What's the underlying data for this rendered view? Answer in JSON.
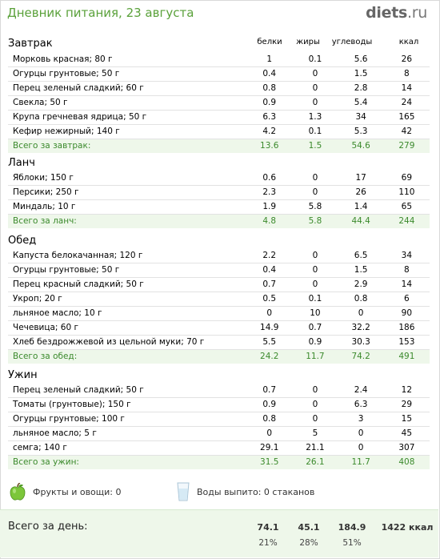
{
  "header": {
    "title": "Дневник питания, 23 августа",
    "logo_main": "diets",
    "logo_tld": ".ru"
  },
  "columns": {
    "protein": "белки",
    "fat": "жиры",
    "carbs": "углеводы",
    "kcal": "ккал"
  },
  "meals": [
    {
      "title": "Завтрак",
      "items": [
        {
          "name": "Морковь красная; 80 г",
          "protein": "1",
          "fat": "0.1",
          "carbs": "5.6",
          "kcal": "26"
        },
        {
          "name": "Огурцы грунтовые; 50 г",
          "protein": "0.4",
          "fat": "0",
          "carbs": "1.5",
          "kcal": "8"
        },
        {
          "name": "Перец зеленый сладкий; 60 г",
          "protein": "0.8",
          "fat": "0",
          "carbs": "2.8",
          "kcal": "14"
        },
        {
          "name": "Свекла; 50 г",
          "protein": "0.9",
          "fat": "0",
          "carbs": "5.4",
          "kcal": "24"
        },
        {
          "name": "Крупа гречневая ядрица; 50 г",
          "protein": "6.3",
          "fat": "1.3",
          "carbs": "34",
          "kcal": "165"
        },
        {
          "name": "Кефир нежирный; 140 г",
          "protein": "4.2",
          "fat": "0.1",
          "carbs": "5.3",
          "kcal": "42"
        }
      ],
      "total": {
        "name": "Всего за завтрак:",
        "protein": "13.6",
        "fat": "1.5",
        "carbs": "54.6",
        "kcal": "279"
      }
    },
    {
      "title": "Ланч",
      "items": [
        {
          "name": "Яблоки; 150 г",
          "protein": "0.6",
          "fat": "0",
          "carbs": "17",
          "kcal": "69"
        },
        {
          "name": "Персики; 250 г",
          "protein": "2.3",
          "fat": "0",
          "carbs": "26",
          "kcal": "110"
        },
        {
          "name": "Миндаль; 10 г",
          "protein": "1.9",
          "fat": "5.8",
          "carbs": "1.4",
          "kcal": "65"
        }
      ],
      "total": {
        "name": "Всего за ланч:",
        "protein": "4.8",
        "fat": "5.8",
        "carbs": "44.4",
        "kcal": "244"
      }
    },
    {
      "title": "Обед",
      "items": [
        {
          "name": "Капуста белокачанная; 120 г",
          "protein": "2.2",
          "fat": "0",
          "carbs": "6.5",
          "kcal": "34"
        },
        {
          "name": "Огурцы грунтовые; 50 г",
          "protein": "0.4",
          "fat": "0",
          "carbs": "1.5",
          "kcal": "8"
        },
        {
          "name": "Перец красный сладкий; 50 г",
          "protein": "0.7",
          "fat": "0",
          "carbs": "2.9",
          "kcal": "14"
        },
        {
          "name": "Укроп; 20 г",
          "protein": "0.5",
          "fat": "0.1",
          "carbs": "0.8",
          "kcal": "6"
        },
        {
          "name": "льняное масло; 10 г",
          "protein": "0",
          "fat": "10",
          "carbs": "0",
          "kcal": "90"
        },
        {
          "name": "Чечевица; 60 г",
          "protein": "14.9",
          "fat": "0.7",
          "carbs": "32.2",
          "kcal": "186"
        },
        {
          "name": "Хлеб бездрожжевой  из цельной муки; 70 г",
          "protein": "5.5",
          "fat": "0.9",
          "carbs": "30.3",
          "kcal": "153"
        }
      ],
      "total": {
        "name": "Всего за обед:",
        "protein": "24.2",
        "fat": "11.7",
        "carbs": "74.2",
        "kcal": "491"
      }
    },
    {
      "title": "Ужин",
      "items": [
        {
          "name": "Перец зеленый сладкий; 50 г",
          "protein": "0.7",
          "fat": "0",
          "carbs": "2.4",
          "kcal": "12"
        },
        {
          "name": "Томаты (грунтовые); 150 г",
          "protein": "0.9",
          "fat": "0",
          "carbs": "6.3",
          "kcal": "29"
        },
        {
          "name": "Огурцы грунтовые; 100 г",
          "protein": "0.8",
          "fat": "0",
          "carbs": "3",
          "kcal": "15"
        },
        {
          "name": "льняное масло; 5 г",
          "protein": "0",
          "fat": "5",
          "carbs": "0",
          "kcal": "45"
        },
        {
          "name": "семга; 140 г",
          "protein": "29.1",
          "fat": "21.1",
          "carbs": "0",
          "kcal": "307"
        }
      ],
      "total": {
        "name": "Всего за ужин:",
        "protein": "31.5",
        "fat": "26.1",
        "carbs": "11.7",
        "kcal": "408"
      }
    }
  ],
  "summary": {
    "fruits_label": "Фрукты и овощи: 0",
    "water_label": "Воды выпито: 0 стаканов"
  },
  "day_total": {
    "label": "Всего за день:",
    "protein": "74.1",
    "fat": "45.1",
    "carbs": "184.9",
    "kcal": "1422 ккал",
    "protein_pct": "21%",
    "fat_pct": "28%",
    "carbs_pct": "51%"
  },
  "colors": {
    "accent_green": "#5aa13a",
    "total_row_bg": "#eef7ea",
    "total_row_text": "#3b8a2c"
  }
}
